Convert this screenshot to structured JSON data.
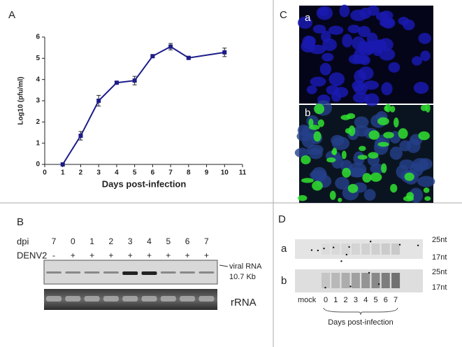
{
  "chart_data": {
    "type": "line",
    "panel_label": "A",
    "x": [
      1,
      2,
      3,
      4,
      5,
      6,
      7,
      8,
      10
    ],
    "values": [
      0,
      1.35,
      3.0,
      3.85,
      3.95,
      5.1,
      5.55,
      5.02,
      5.28
    ],
    "errors": [
      0,
      0.2,
      0.25,
      0.05,
      0.2,
      0.05,
      0.15,
      0.05,
      0.2
    ],
    "color": "#1c1c8a",
    "xlabel": "Days post-infection",
    "ylabel": "Log10 (pfu/ml)",
    "xlim": [
      0,
      11
    ],
    "xticks": [
      0,
      1,
      2,
      3,
      4,
      5,
      6,
      7,
      8,
      9,
      10,
      11
    ],
    "ylim": [
      0,
      6
    ],
    "yticks": [
      0,
      1,
      2,
      3,
      4,
      5,
      6
    ]
  },
  "panel_b": {
    "label": "B",
    "dpi_label": "dpi",
    "dpi": [
      "7",
      "0",
      "1",
      "2",
      "3",
      "4",
      "5",
      "6",
      "7"
    ],
    "denv_label": "DENV2",
    "denv": [
      "-",
      "+",
      "+",
      "+",
      "+",
      "+",
      "+",
      "+",
      "+"
    ],
    "band_label": "viral RNA",
    "band_size": "10.7 Kb",
    "rrna_label": "rRNA"
  },
  "panel_c": {
    "label": "C",
    "image_a": "a",
    "image_b": "b"
  },
  "panel_d": {
    "label": "D",
    "row_a": "a",
    "row_b": "b",
    "marker_high": "25nt",
    "marker_low": "17nt",
    "marker_high_b": "25nt",
    "marker_low_b": "17nt",
    "mock": "mock",
    "lanes": [
      "0",
      "1",
      "2",
      "3",
      "4",
      "5",
      "6",
      "7"
    ],
    "xlabel": "Days post-infection"
  }
}
